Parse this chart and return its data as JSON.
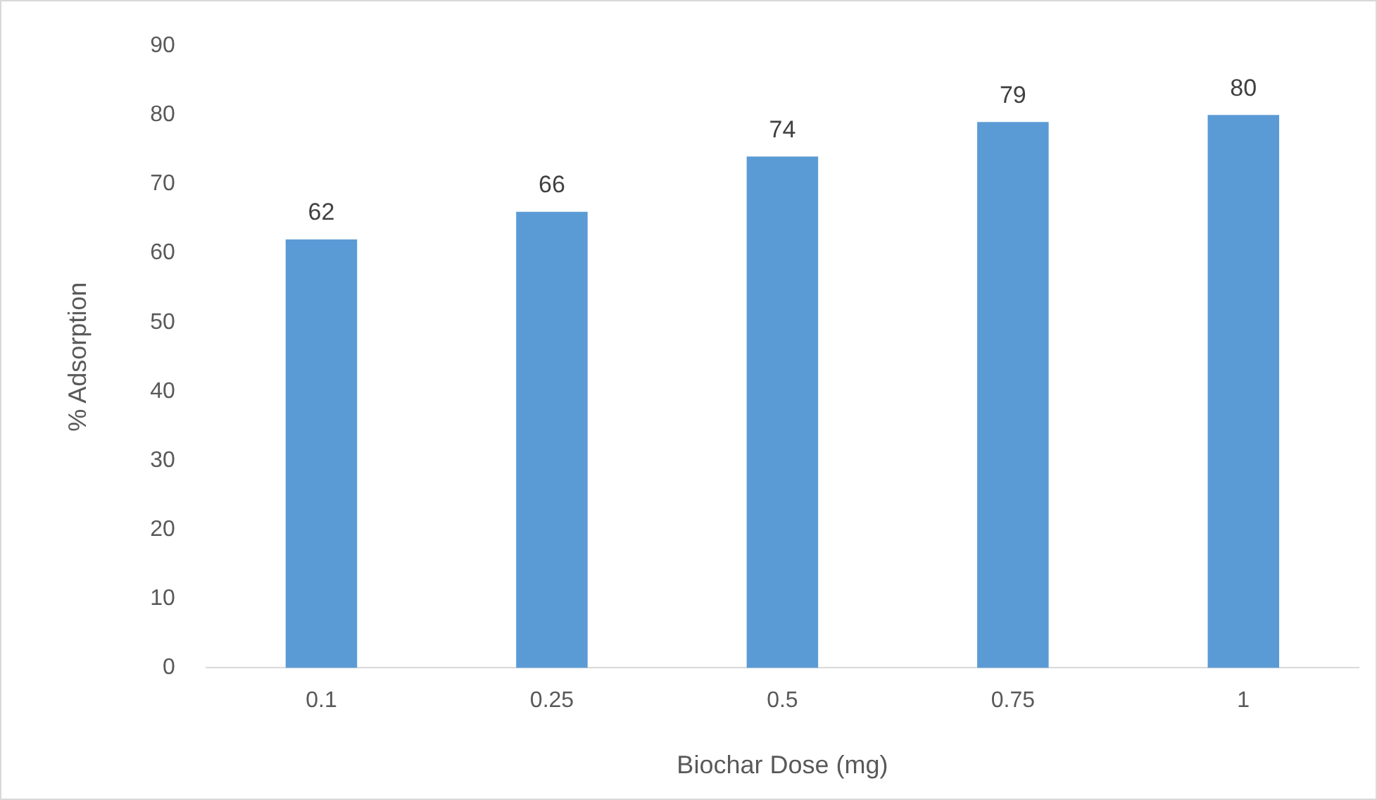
{
  "chart_data": {
    "type": "bar",
    "xlabel": "Biochar Dose (mg)",
    "ylabel": "% Adsorption",
    "categories": [
      "0.1",
      "0.25",
      "0.5",
      "0.75",
      "1"
    ],
    "values": [
      62,
      66,
      74,
      79,
      80
    ],
    "color": "#5b9bd5",
    "ylim": [
      0,
      90
    ],
    "yticks": [
      0,
      10,
      20,
      30,
      40,
      50,
      60,
      70,
      80,
      90
    ],
    "grid": false,
    "data_labels": true
  }
}
